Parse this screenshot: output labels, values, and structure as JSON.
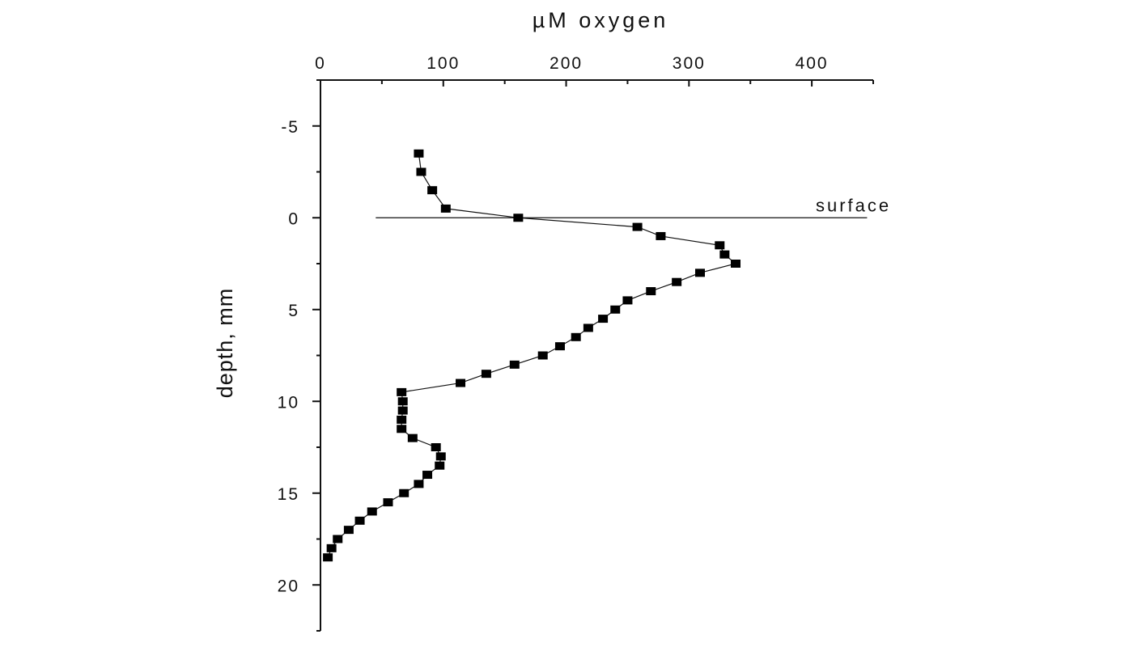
{
  "chart_data": {
    "type": "scatter",
    "xlabel": "µM oxygen",
    "ylabel": "depth, mm",
    "x_axis_position": "top",
    "y_inverted": true,
    "xlim": [
      0,
      450
    ],
    "ylim": [
      -7.5,
      22.5
    ],
    "x_ticks": [
      "0",
      "100",
      "200",
      "300",
      "400"
    ],
    "y_ticks": [
      "-5",
      "0",
      "5",
      "10",
      "15",
      "20"
    ],
    "series": [
      {
        "x": [
          80,
          82,
          91,
          102,
          161,
          258,
          277,
          325,
          329,
          338,
          309,
          290,
          269,
          250,
          240,
          230,
          218,
          208,
          195,
          181,
          158,
          135,
          114,
          66,
          67,
          67,
          66,
          66,
          75,
          94,
          98,
          97,
          87,
          80,
          68,
          55,
          42,
          32,
          23,
          14,
          9,
          6
        ],
        "y": [
          -3.5,
          -2.5,
          -1.5,
          -0.5,
          0,
          0.5,
          1,
          1.5,
          2,
          2.5,
          3,
          3.5,
          4,
          4.5,
          5,
          5.5,
          6,
          6.5,
          7,
          7.5,
          8,
          8.5,
          9,
          9.5,
          10,
          10.5,
          11,
          11.5,
          12,
          12.5,
          13,
          13.5,
          14,
          14.5,
          15,
          15.5,
          16,
          16.5,
          17,
          17.5,
          18,
          18.5
        ]
      }
    ],
    "annotations": [
      {
        "text": "surface",
        "y": 0,
        "x_start": 45,
        "x_end": 445
      }
    ]
  }
}
